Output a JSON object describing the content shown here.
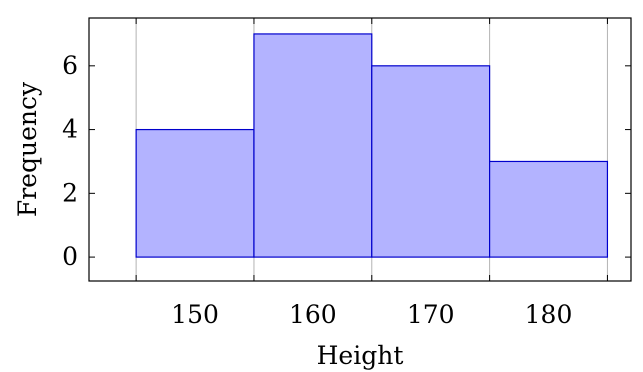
{
  "chart_data": {
    "type": "bar",
    "bins": [
      {
        "start": 145,
        "end": 155,
        "count": 4
      },
      {
        "start": 155,
        "end": 165,
        "count": 7
      },
      {
        "start": 165,
        "end": 175,
        "count": 6
      },
      {
        "start": 175,
        "end": 185,
        "count": 3
      }
    ],
    "categories": [
      "145–155",
      "155–165",
      "165–175",
      "175–185"
    ],
    "values": [
      4,
      7,
      6,
      3
    ],
    "xlabel": "Height",
    "ylabel": "Frequency",
    "xticks": [
      150,
      160,
      170,
      180
    ],
    "yticks": [
      0,
      2,
      4,
      6
    ],
    "xlim": [
      141,
      187
    ],
    "ylim": [
      -0.75,
      7.5
    ],
    "grid": {
      "x": true,
      "y": false
    },
    "bar_fill": "#b3b3ff",
    "bar_stroke": "#0000cc",
    "grid_color": "#b3b3b3"
  }
}
